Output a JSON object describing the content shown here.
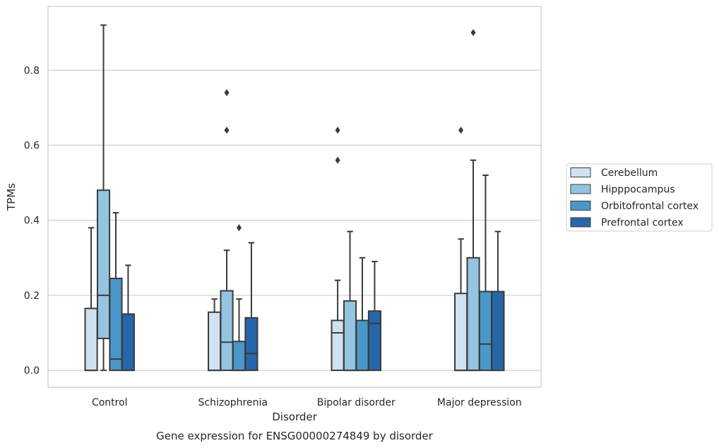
{
  "chart_data": {
    "type": "boxplot",
    "caption": "Gene expression for ENSG00000274849 by disorder",
    "xlabel": "Disorder",
    "ylabel": "TPMs",
    "ylim": [
      -0.045,
      0.97
    ],
    "yticks": [
      0.0,
      0.2,
      0.4,
      0.6,
      0.8
    ],
    "ytick_labels": [
      "0.0",
      "0.2",
      "0.4",
      "0.6",
      "0.8"
    ],
    "grid": "horizontal",
    "legend_position": "right",
    "categories": [
      "Control",
      "Schizophrenia",
      "Bipolar disorder",
      "Major depression"
    ],
    "series": [
      {
        "name": "Cerebellum",
        "color": "#d0e1f2",
        "boxes": [
          {
            "low": 0.0,
            "q1": 0.0,
            "median": 0.0,
            "q3": 0.165,
            "high": 0.38,
            "outliers": []
          },
          {
            "low": 0.0,
            "q1": 0.0,
            "median": 0.0,
            "q3": 0.155,
            "high": 0.19,
            "outliers": []
          },
          {
            "low": 0.0,
            "q1": 0.0,
            "median": 0.1,
            "q3": 0.133,
            "high": 0.24,
            "outliers": [
              0.56,
              0.64
            ]
          },
          {
            "low": 0.0,
            "q1": 0.0,
            "median": 0.0,
            "q3": 0.205,
            "high": 0.35,
            "outliers": [
              0.64
            ]
          }
        ]
      },
      {
        "name": "Hipppocampus",
        "color": "#94c4df",
        "boxes": [
          {
            "low": 0.0,
            "q1": 0.085,
            "median": 0.2,
            "q3": 0.48,
            "high": 0.92,
            "outliers": []
          },
          {
            "low": 0.0,
            "q1": 0.0,
            "median": 0.075,
            "q3": 0.212,
            "high": 0.32,
            "outliers": [
              0.64,
              0.74
            ]
          },
          {
            "low": 0.0,
            "q1": 0.0,
            "median": 0.0,
            "q3": 0.185,
            "high": 0.37,
            "outliers": []
          },
          {
            "low": 0.0,
            "q1": 0.0,
            "median": 0.0,
            "q3": 0.3,
            "high": 0.56,
            "outliers": [
              0.9
            ]
          }
        ]
      },
      {
        "name": "Orbitofrontal cortex",
        "color": "#4a98c9",
        "boxes": [
          {
            "low": 0.0,
            "q1": 0.0,
            "median": 0.03,
            "q3": 0.245,
            "high": 0.42,
            "outliers": []
          },
          {
            "low": 0.0,
            "q1": 0.0,
            "median": 0.0,
            "q3": 0.077,
            "high": 0.19,
            "outliers": [
              0.38
            ]
          },
          {
            "low": 0.0,
            "q1": 0.0,
            "median": 0.0,
            "q3": 0.133,
            "high": 0.3,
            "outliers": []
          },
          {
            "low": 0.0,
            "q1": 0.0,
            "median": 0.07,
            "q3": 0.21,
            "high": 0.52,
            "outliers": []
          }
        ]
      },
      {
        "name": "Prefrontal cortex",
        "color": "#2766a9",
        "boxes": [
          {
            "low": 0.0,
            "q1": 0.0,
            "median": 0.0,
            "q3": 0.15,
            "high": 0.28,
            "outliers": []
          },
          {
            "low": 0.0,
            "q1": 0.0,
            "median": 0.045,
            "q3": 0.14,
            "high": 0.34,
            "outliers": []
          },
          {
            "low": 0.0,
            "q1": 0.0,
            "median": 0.125,
            "q3": 0.158,
            "high": 0.29,
            "outliers": []
          },
          {
            "low": 0.0,
            "q1": 0.0,
            "median": 0.0,
            "q3": 0.21,
            "high": 0.37,
            "outliers": []
          }
        ]
      }
    ]
  }
}
